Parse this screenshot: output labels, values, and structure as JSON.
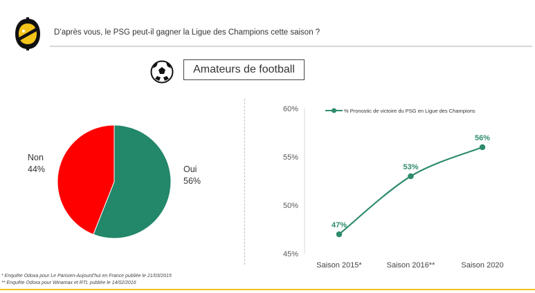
{
  "header": {
    "question": "D’après vous, le PSG peut-il gagner la Ligue des Champions cette saison ?"
  },
  "segment": {
    "icon": "soccer-ball-icon",
    "label": "Amateurs de football"
  },
  "chart_data": [
    {
      "type": "pie",
      "categories": [
        "Oui",
        "Non"
      ],
      "values": [
        56,
        44
      ],
      "labels": {
        "oui_name": "Oui",
        "oui_value": "56%",
        "non_name": "Non",
        "non_value": "44%"
      },
      "colors": [
        "#23876a",
        "#ff0000"
      ]
    },
    {
      "type": "line",
      "categories": [
        "Saison 2015*",
        "Saison 2016**",
        "Saison 2020"
      ],
      "series": [
        {
          "name": "% Pronostic de victoire du PSG en Ligue des Champions",
          "values": [
            47,
            53,
            56
          ],
          "color": "#2e8b6e"
        }
      ],
      "data_labels": [
        "47%",
        "53%",
        "56%"
      ],
      "ylim": [
        45,
        60
      ],
      "yticks": [
        "45%",
        "50%",
        "55%",
        "60%"
      ],
      "legend_position": "top"
    }
  ],
  "footnotes": {
    "note1": "* Enquête Odoxa pour Le Parisien-Aujourd’hui en France publiée le 21/03/2015",
    "note2": "** Enquête Odoxa pour Winamax et RTL publiée le 14/02/2016"
  }
}
